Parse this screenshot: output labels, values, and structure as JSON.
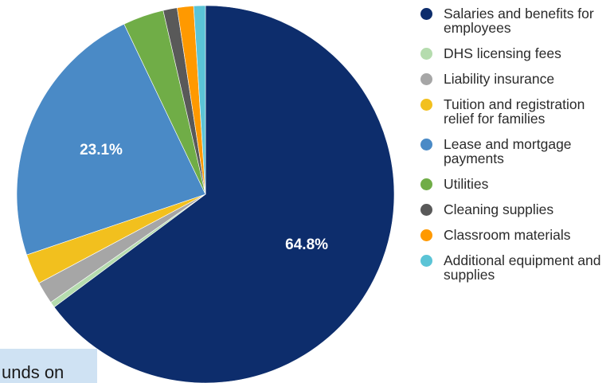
{
  "chart_data": {
    "type": "pie",
    "title": "",
    "slices": [
      {
        "name": "Salaries and benefits for employees",
        "value": 64.8,
        "color": "#0d2d6c",
        "label": "64.8%"
      },
      {
        "name": "DHS licensing fees",
        "value": 0.5,
        "color": "#b5dcae",
        "label": ""
      },
      {
        "name": "Liability insurance",
        "value": 1.9,
        "color": "#a6a6a6",
        "label": ""
      },
      {
        "name": "Tuition and registration relief for families",
        "value": 2.6,
        "color": "#f2c01e",
        "label": ""
      },
      {
        "name": "Lease and mortgage payments",
        "value": 23.1,
        "color": "#4a8ac6",
        "label": "23.1%"
      },
      {
        "name": "Utilities",
        "value": 3.5,
        "color": "#70ad47",
        "label": ""
      },
      {
        "name": "Cleaning supplies",
        "value": 1.2,
        "color": "#595959",
        "label": ""
      },
      {
        "name": "Classroom materials",
        "value": 1.4,
        "color": "#ff9900",
        "label": ""
      },
      {
        "name": "Additional equipment and supplies",
        "value": 1.0,
        "color": "#5bc4d6",
        "label": ""
      }
    ],
    "start_angle_deg": 0,
    "direction": "clockwise",
    "legend_position": "right"
  },
  "legend": {
    "items": [
      {
        "label": "Salaries and benefits for employees",
        "color": "#0d2d6c"
      },
      {
        "label": "DHS licensing fees",
        "color": "#b5dcae"
      },
      {
        "label": "Liability insurance",
        "color": "#a6a6a6"
      },
      {
        "label": "Tuition and registration relief for families",
        "color": "#f2c01e"
      },
      {
        "label": "Lease and mortgage payments",
        "color": "#4a8ac6"
      },
      {
        "label": "Utilities",
        "color": "#70ad47"
      },
      {
        "label": "Cleaning supplies",
        "color": "#595959"
      },
      {
        "label": "Classroom materials",
        "color": "#ff9900"
      },
      {
        "label": "Additional equipment and supplies",
        "color": "#5bc4d6"
      }
    ]
  },
  "overlay": {
    "text": "unds on"
  }
}
